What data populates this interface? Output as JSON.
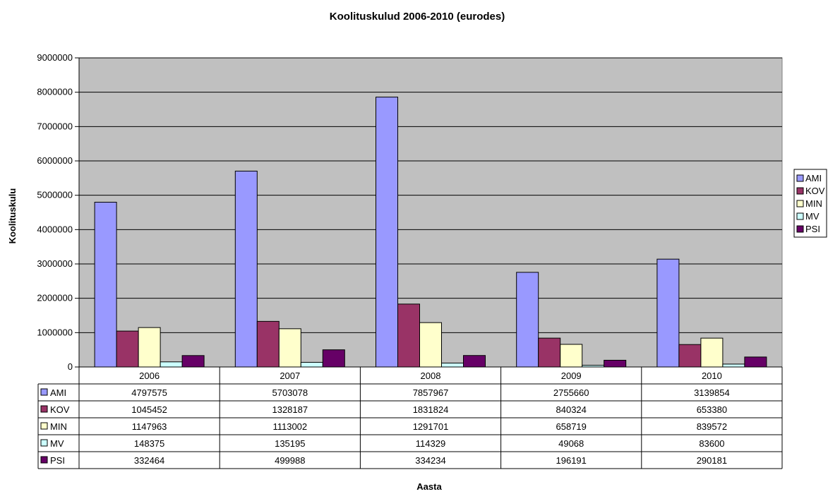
{
  "chart_data": {
    "type": "bar",
    "title": "Koolituskulud 2006-2010 (eurodes)",
    "xlabel": "Aasta",
    "ylabel": "Koolituskulu",
    "ylim": [
      0,
      9000000
    ],
    "yticks": [
      0,
      1000000,
      2000000,
      3000000,
      4000000,
      5000000,
      6000000,
      7000000,
      8000000,
      9000000
    ],
    "grid": true,
    "legend": "right",
    "categories": [
      "2006",
      "2007",
      "2008",
      "2009",
      "2010"
    ],
    "series": [
      {
        "name": "AMI",
        "color": "#9999ff",
        "values": [
          4797575,
          5703078,
          7857967,
          2755660,
          3139854
        ]
      },
      {
        "name": "KOV",
        "color": "#993366",
        "values": [
          1045452,
          1328187,
          1831824,
          840324,
          653380
        ]
      },
      {
        "name": "MIN",
        "color": "#ffffcc",
        "values": [
          1147963,
          1113002,
          1291701,
          658719,
          839572
        ]
      },
      {
        "name": "MV",
        "color": "#ccffff",
        "values": [
          148375,
          135195,
          114329,
          49068,
          83600
        ]
      },
      {
        "name": "PSI",
        "color": "#660066",
        "values": [
          332464,
          499988,
          334234,
          196191,
          290181
        ]
      }
    ],
    "plot_background": "#c0c0c0"
  }
}
